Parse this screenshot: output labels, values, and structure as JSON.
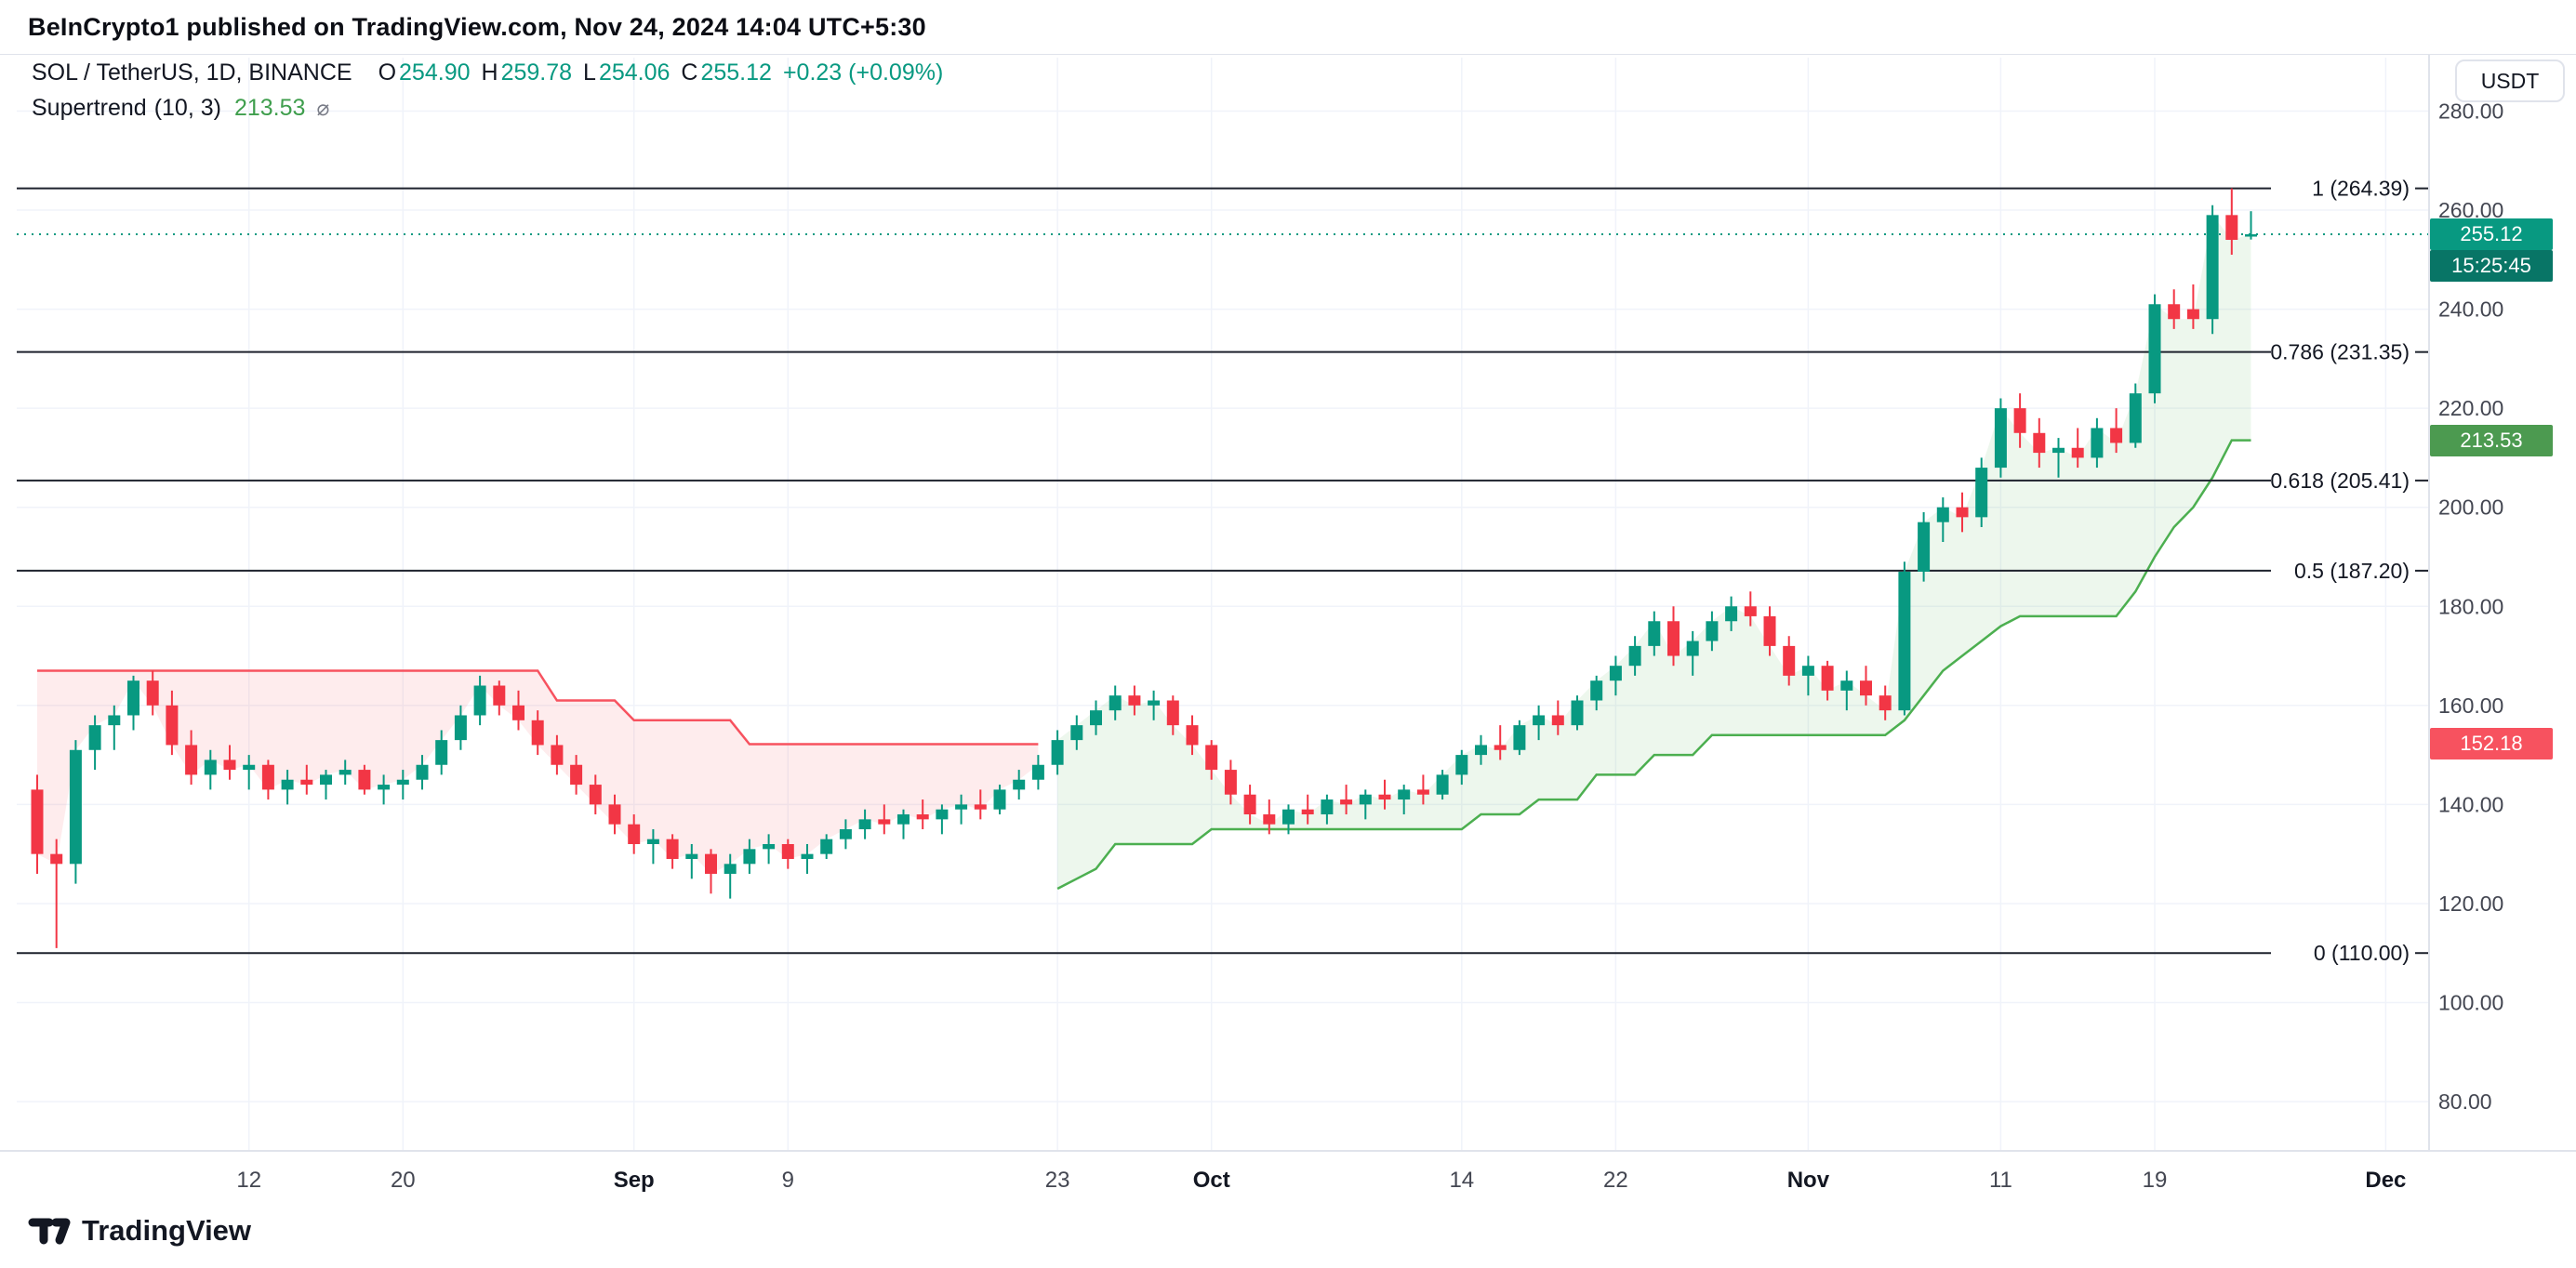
{
  "attribution": "BeInCrypto1 published on TradingView.com, Nov 24, 2024 14:04 UTC+5:30",
  "header": {
    "symbol": "SOL / TetherUS, 1D, BINANCE",
    "ohlc": [
      {
        "label": "O",
        "value": "254.90"
      },
      {
        "label": "H",
        "value": "259.78"
      },
      {
        "label": "L",
        "value": "254.06"
      },
      {
        "label": "C",
        "value": "255.12"
      }
    ],
    "change": "+0.23 (+0.09%)"
  },
  "indicator": {
    "name": "Supertrend",
    "params": "(10, 3)",
    "value": "213.53",
    "icon_glyph": "⌀"
  },
  "axis": {
    "currency_button": "USDT"
  },
  "footer": {
    "logo_text": "TradingView"
  },
  "colors": {
    "up": "#089981",
    "down": "#f23645",
    "st_up": "#4caf50",
    "st_down": "#f7525f",
    "st_up_fill": "rgba(76,175,80,0.10)",
    "st_down_fill": "rgba(247,82,95,0.11)",
    "grid": "#f0f3fa",
    "fib_line": "#1e222d",
    "axis_text": "#434651",
    "axis_text_strong": "#131722",
    "accent": "#089981"
  },
  "chart_data": {
    "type": "candlestick",
    "title": "SOL / TetherUS, 1D, BINANCE",
    "interval": "1D",
    "start_date": "2024-08-01",
    "current_price": 255.12,
    "y_axis": {
      "ticks": [
        80,
        100,
        120,
        140,
        160,
        180,
        200,
        220,
        240,
        260,
        280
      ]
    },
    "x_ticks": [
      {
        "index": 11,
        "label": "12",
        "bold": false
      },
      {
        "index": 19,
        "label": "20",
        "bold": false
      },
      {
        "index": 31,
        "label": "Sep",
        "bold": true
      },
      {
        "index": 39,
        "label": "9",
        "bold": false
      },
      {
        "index": 53,
        "label": "23",
        "bold": false
      },
      {
        "index": 61,
        "label": "Oct",
        "bold": true
      },
      {
        "index": 74,
        "label": "14",
        "bold": false
      },
      {
        "index": 82,
        "label": "22",
        "bold": false
      },
      {
        "index": 92,
        "label": "Nov",
        "bold": true
      },
      {
        "index": 102,
        "label": "11",
        "bold": false
      },
      {
        "index": 110,
        "label": "19",
        "bold": false
      },
      {
        "index": 122,
        "label": "Dec",
        "bold": true
      }
    ],
    "fib_levels": [
      {
        "level": "1",
        "price": "264.39"
      },
      {
        "level": "0.786",
        "price": "231.35"
      },
      {
        "level": "0.618",
        "price": "205.41"
      },
      {
        "level": "0.5",
        "price": "187.20"
      },
      {
        "level": "0",
        "price": "110.00"
      }
    ],
    "price_badges": [
      {
        "name": "last-price-label",
        "value": "255.12",
        "bg": "#089981",
        "countdown": "15:25:45",
        "countdown_bg": "#087566"
      },
      {
        "name": "supertrend-value-label",
        "value": "213.53",
        "bg": "#4c9a50"
      },
      {
        "name": "supertrend-stop-label",
        "value": "152.18",
        "bg": "#f7525f"
      }
    ],
    "supertrend": {
      "settings": "(10, 3)",
      "current": 213.53,
      "segments": [
        {
          "trend": "down",
          "start": 0,
          "values": [
            167,
            167,
            167,
            167,
            167,
            167,
            167,
            167,
            167,
            167,
            167,
            167,
            167,
            167,
            167,
            167,
            167,
            167,
            167,
            167,
            167,
            167,
            167,
            167,
            167,
            167,
            167,
            161,
            161,
            161,
            161,
            157,
            157,
            157,
            157,
            157,
            157,
            152.18,
            152.18,
            152.18,
            152.18,
            152.18,
            152.18,
            152.18,
            152.18,
            152.18,
            152.18,
            152.18,
            152.18,
            152.18,
            152.18,
            152.18,
            152.18
          ]
        },
        {
          "trend": "up",
          "start": 53,
          "values": [
            123,
            125,
            127,
            132,
            132,
            132,
            132,
            132,
            135,
            135,
            135,
            135,
            135,
            135,
            135,
            135,
            135,
            135,
            135,
            135,
            135,
            135,
            138,
            138,
            138,
            141,
            141,
            141,
            146,
            146,
            146,
            150,
            150,
            150,
            154,
            154,
            154,
            154,
            154,
            154,
            154,
            154,
            154,
            154,
            157,
            162,
            167,
            170,
            173,
            176,
            178,
            178,
            178,
            178,
            178,
            178,
            183,
            190,
            196,
            200,
            206,
            213.53,
            213.53
          ]
        }
      ]
    },
    "candles": [
      [
        143,
        146,
        126,
        130
      ],
      [
        130,
        133,
        111,
        128
      ],
      [
        128,
        153,
        124,
        151
      ],
      [
        151,
        158,
        147,
        156
      ],
      [
        156,
        160,
        151,
        158
      ],
      [
        158,
        166,
        155,
        165
      ],
      [
        165,
        167,
        158,
        160
      ],
      [
        160,
        163,
        150,
        152
      ],
      [
        152,
        155,
        144,
        146
      ],
      [
        146,
        151,
        143,
        149
      ],
      [
        149,
        152,
        145,
        147
      ],
      [
        147,
        150,
        143,
        148
      ],
      [
        148,
        149,
        141,
        143
      ],
      [
        143,
        147,
        140,
        145
      ],
      [
        145,
        148,
        142,
        144
      ],
      [
        144,
        147,
        141,
        146
      ],
      [
        146,
        149,
        144,
        147
      ],
      [
        147,
        148,
        142,
        143
      ],
      [
        143,
        146,
        140,
        144
      ],
      [
        144,
        147,
        141,
        145
      ],
      [
        145,
        150,
        143,
        148
      ],
      [
        148,
        155,
        146,
        153
      ],
      [
        153,
        160,
        151,
        158
      ],
      [
        158,
        166,
        156,
        164
      ],
      [
        164,
        165,
        158,
        160
      ],
      [
        160,
        163,
        155,
        157
      ],
      [
        157,
        159,
        150,
        152
      ],
      [
        152,
        154,
        146,
        148
      ],
      [
        148,
        150,
        142,
        144
      ],
      [
        144,
        146,
        138,
        140
      ],
      [
        140,
        142,
        134,
        136
      ],
      [
        136,
        138,
        130,
        132
      ],
      [
        132,
        135,
        128,
        133
      ],
      [
        133,
        134,
        127,
        129
      ],
      [
        129,
        132,
        125,
        130
      ],
      [
        130,
        131,
        122,
        126
      ],
      [
        126,
        130,
        121,
        128
      ],
      [
        128,
        133,
        126,
        131
      ],
      [
        131,
        134,
        128,
        132
      ],
      [
        132,
        133,
        127,
        129
      ],
      [
        129,
        132,
        126,
        130
      ],
      [
        130,
        134,
        129,
        133
      ],
      [
        133,
        137,
        131,
        135
      ],
      [
        135,
        139,
        133,
        137
      ],
      [
        137,
        140,
        134,
        136
      ],
      [
        136,
        139,
        133,
        138
      ],
      [
        138,
        141,
        135,
        137
      ],
      [
        137,
        140,
        134,
        139
      ],
      [
        139,
        142,
        136,
        140
      ],
      [
        140,
        143,
        137,
        139
      ],
      [
        139,
        144,
        138,
        143
      ],
      [
        143,
        147,
        141,
        145
      ],
      [
        145,
        150,
        143,
        148
      ],
      [
        148,
        155,
        146,
        153
      ],
      [
        153,
        158,
        151,
        156
      ],
      [
        156,
        161,
        154,
        159
      ],
      [
        159,
        164,
        157,
        162
      ],
      [
        162,
        164,
        158,
        160
      ],
      [
        160,
        163,
        157,
        161
      ],
      [
        161,
        162,
        154,
        156
      ],
      [
        156,
        158,
        150,
        152
      ],
      [
        152,
        153,
        145,
        147
      ],
      [
        147,
        149,
        140,
        142
      ],
      [
        142,
        144,
        136,
        138
      ],
      [
        138,
        141,
        134,
        136
      ],
      [
        136,
        140,
        134,
        139
      ],
      [
        139,
        142,
        136,
        138
      ],
      [
        138,
        142,
        136,
        141
      ],
      [
        141,
        144,
        138,
        140
      ],
      [
        140,
        143,
        137,
        142
      ],
      [
        142,
        145,
        139,
        141
      ],
      [
        141,
        144,
        138,
        143
      ],
      [
        143,
        146,
        140,
        142
      ],
      [
        142,
        147,
        141,
        146
      ],
      [
        146,
        151,
        144,
        150
      ],
      [
        150,
        154,
        148,
        152
      ],
      [
        152,
        156,
        149,
        151
      ],
      [
        151,
        157,
        150,
        156
      ],
      [
        156,
        160,
        153,
        158
      ],
      [
        158,
        161,
        154,
        156
      ],
      [
        156,
        162,
        155,
        161
      ],
      [
        161,
        166,
        159,
        165
      ],
      [
        165,
        170,
        162,
        168
      ],
      [
        168,
        174,
        166,
        172
      ],
      [
        172,
        179,
        170,
        177
      ],
      [
        177,
        180,
        168,
        170
      ],
      [
        170,
        175,
        166,
        173
      ],
      [
        173,
        179,
        171,
        177
      ],
      [
        177,
        182,
        175,
        180
      ],
      [
        180,
        183,
        176,
        178
      ],
      [
        178,
        180,
        170,
        172
      ],
      [
        172,
        174,
        164,
        166
      ],
      [
        166,
        170,
        162,
        168
      ],
      [
        168,
        169,
        161,
        163
      ],
      [
        163,
        167,
        159,
        165
      ],
      [
        165,
        168,
        160,
        162
      ],
      [
        162,
        164,
        157,
        159
      ],
      [
        159,
        189,
        158,
        187
      ],
      [
        187,
        199,
        185,
        197
      ],
      [
        197,
        202,
        193,
        200
      ],
      [
        200,
        203,
        195,
        198
      ],
      [
        198,
        210,
        196,
        208
      ],
      [
        208,
        222,
        206,
        220
      ],
      [
        220,
        223,
        212,
        215
      ],
      [
        215,
        218,
        208,
        211
      ],
      [
        211,
        214,
        206,
        212
      ],
      [
        212,
        216,
        208,
        210
      ],
      [
        210,
        218,
        208,
        216
      ],
      [
        216,
        220,
        211,
        213
      ],
      [
        213,
        225,
        212,
        223
      ],
      [
        223,
        243,
        221,
        241
      ],
      [
        241,
        244,
        236,
        238
      ],
      [
        240,
        245,
        236,
        238
      ],
      [
        238,
        261,
        235,
        259
      ],
      [
        259,
        264.39,
        251,
        254
      ],
      [
        254.9,
        259.78,
        254.06,
        255.12
      ]
    ]
  }
}
